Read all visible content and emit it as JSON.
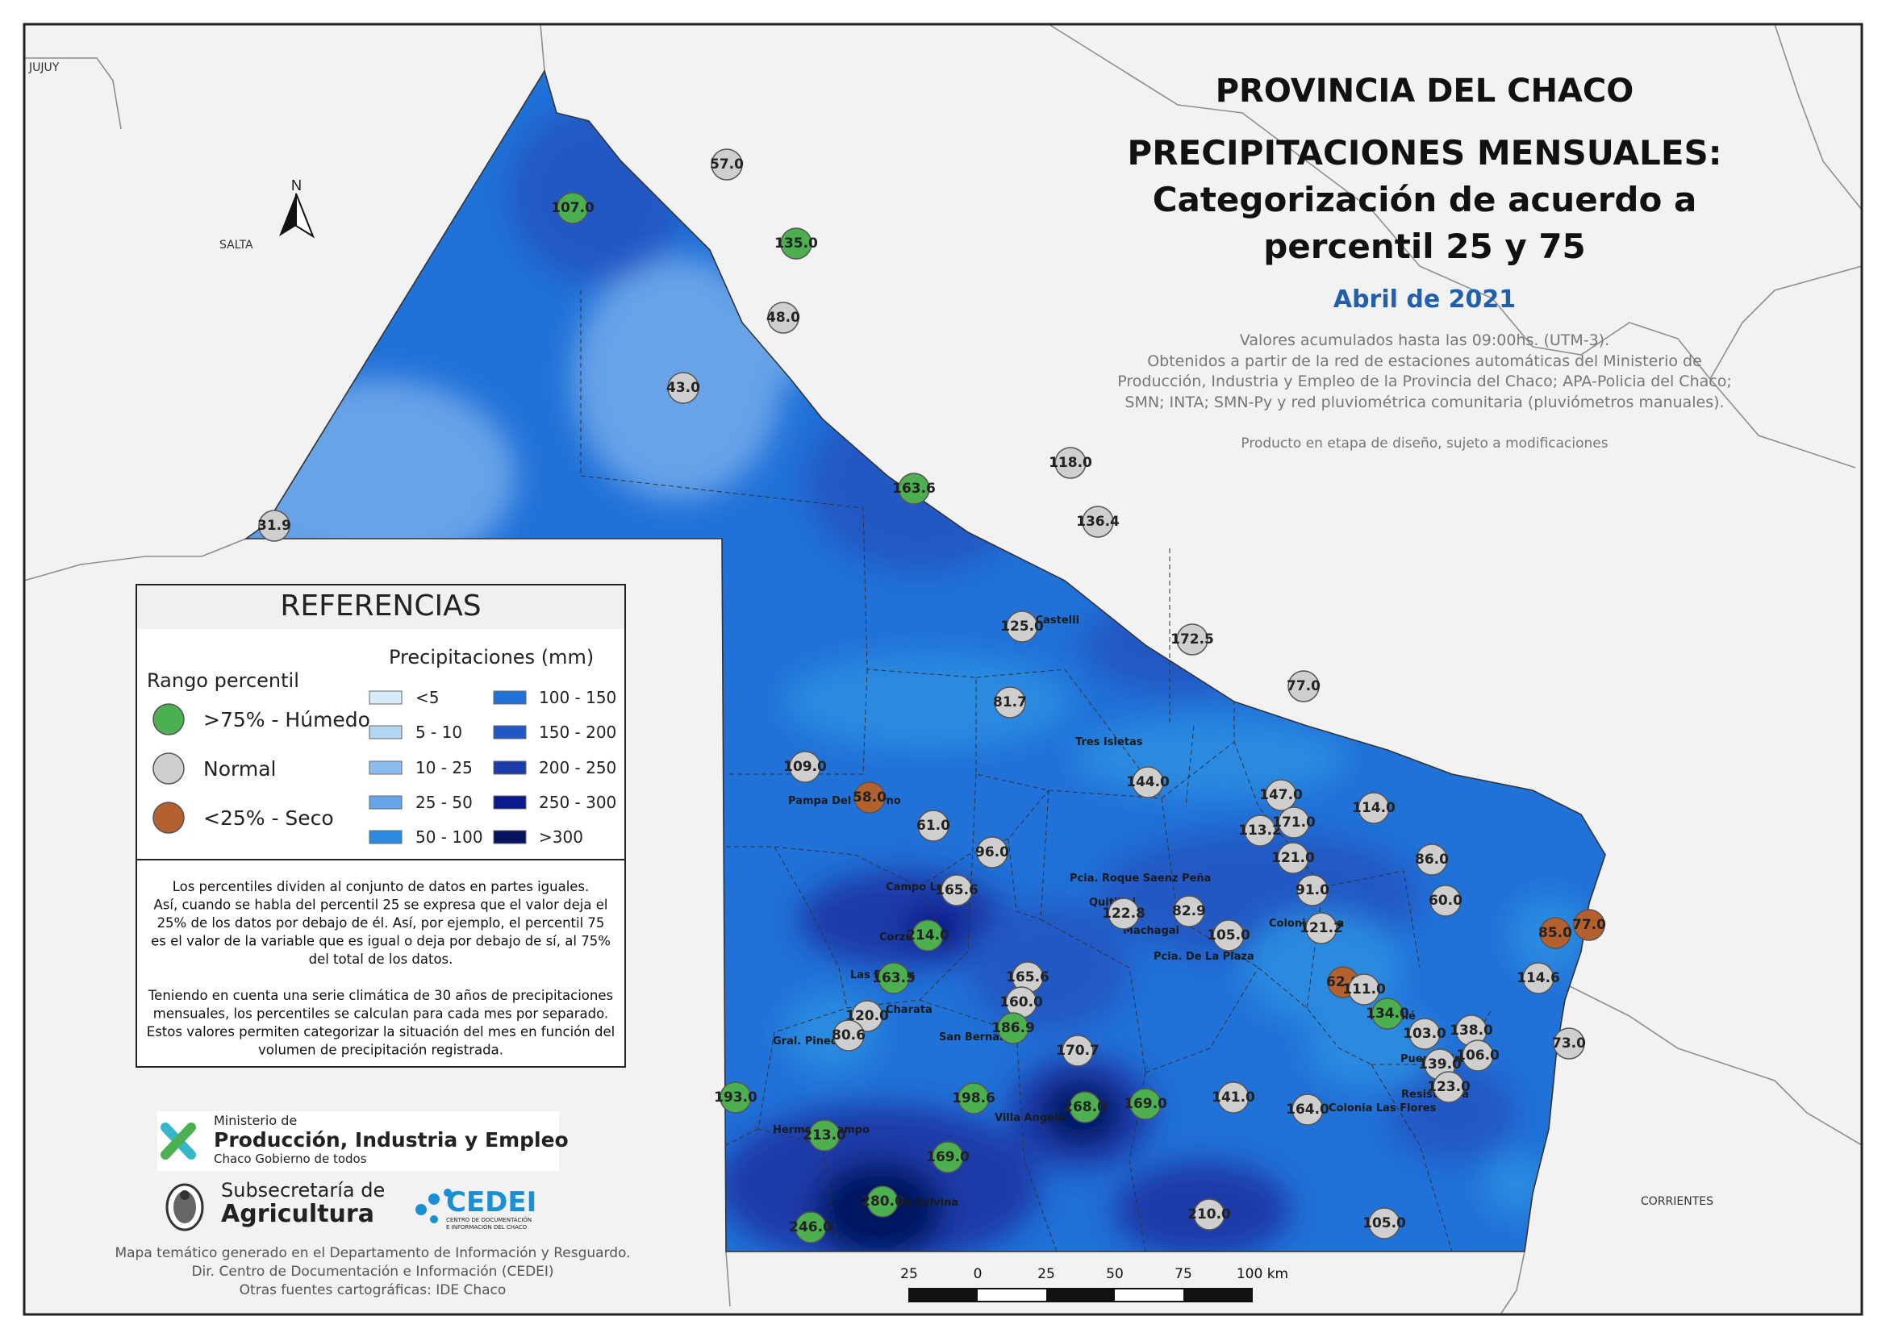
{
  "title": {
    "line1": "PROVINCIA DEL CHACO",
    "line2": "PRECIPITACIONES MENSUALES:",
    "line3": "Categorización de acuerdo a",
    "line4": "percentil 25 y 75",
    "period": "Abril de 2021"
  },
  "notes": {
    "line1": "Valores acumulados hasta las 09:00hs. (UTM-3).",
    "line2": "Obtenidos a partir de la red de estaciones automáticas del Ministerio de",
    "line3": "Producción, Industria y Empleo de la Provincia del Chaco; APA-Policia del Chaco;",
    "line4": "SMN; INTA; SMN-Py y red pluviométrica comunitaria (pluviómetros manuales).",
    "status": "Producto en etapa de diseño, sujeto a modificaciones"
  },
  "regions": {
    "jujuy": "JUJUY",
    "salta": "SALTA",
    "corrientes": "CORRIENTES"
  },
  "north_arrow_label": "N",
  "legend": {
    "heading": "REFERENCIAS",
    "percentile_title": "Rango percentil",
    "precip_title": "Precipitaciones (mm)",
    "categories": [
      {
        "label": ">75% - Húmedo",
        "color": "#4caf50"
      },
      {
        "label": "Normal",
        "color": "#cfcfcf"
      },
      {
        "label": "<25% - Seco",
        "color": "#b5602f"
      }
    ],
    "classes_left": [
      {
        "label": "<5",
        "color": "#d6ecfb"
      },
      {
        "label": "5 - 10",
        "color": "#b3d6f5"
      },
      {
        "label": "10 - 25",
        "color": "#8dbdee"
      },
      {
        "label": "25 - 50",
        "color": "#67a3e8"
      },
      {
        "label": "50 - 100",
        "color": "#2b8ae0"
      }
    ],
    "classes_right": [
      {
        "label": "100 - 150",
        "color": "#2071d8"
      },
      {
        "label": "150 - 200",
        "color": "#2258c4"
      },
      {
        "label": "200 - 250",
        "color": "#1c3aa8"
      },
      {
        "label": "250 - 300",
        "color": "#0b1a8c"
      },
      {
        "label": ">300",
        "color": "#06125e"
      }
    ]
  },
  "explanation": [
    "Los percentiles dividen al conjunto de datos en partes iguales.",
    "Así, cuando se habla del percentil 25 se expresa que el valor deja el",
    "25% de los datos por debajo de él. Así, por ejemplo, el percentil 75",
    "es el valor de la variable que es igual o deja por debajo de sí, al 75%",
    "del total de los datos.",
    "",
    "Teniendo en cuenta una serie climática de 30 años de precipitaciones",
    "mensuales, los percentiles se calculan para cada mes por separado.",
    "Estos valores permiten categorizar la situación del mes en función del",
    "volumen de precipitación registrada."
  ],
  "logos": {
    "ministry_small": "Ministerio de",
    "ministry_name": "Producción, Industria y Empleo",
    "ministry_tag": "Chaco Gobierno de todos",
    "sub_small": "Subsecretaría de",
    "sub_name": "Agricultura",
    "cedei": "CEDEI",
    "cedei_tag1": "CENTRO DE DOCUMENTACIÓN",
    "cedei_tag2": "E INFORMACIÓN DEL CHACO"
  },
  "footer": [
    "Mapa temático generado en el Departamento de Información y Resguardo.",
    "Dir. Centro de Documentación e Información (CEDEI)",
    "Otras fuentes cartográficas: IDE Chaco"
  ],
  "scale_bar": {
    "labels": [
      "25",
      "0",
      "25",
      "50",
      "75",
      "100 km"
    ]
  },
  "places": [
    "J. J. Castelli",
    "Tres Isletas",
    "Pampa Del Infierno",
    "Campo Largo",
    "Corzuela",
    "Las Breñas",
    "Charata",
    "Gral. Pinedo",
    "San Bernardo",
    "Pcia. Roque Saenz Peña",
    "Quitilipi",
    "Machagai",
    "Pcia. De La Plaza",
    "Colonia Elisa",
    "Makallé",
    "Puerto Tirol",
    "Resistencia",
    "Villa Angela",
    "Hermoso Campo",
    "Santa Sylvina",
    "Colonia Las Flores"
  ],
  "stations": [
    {
      "value": "107.0",
      "category": "humedo"
    },
    {
      "value": "57.0",
      "category": "normal"
    },
    {
      "value": "135.0",
      "category": "humedo"
    },
    {
      "value": "48.0",
      "category": "normal"
    },
    {
      "value": "43.0",
      "category": "normal"
    },
    {
      "value": "31.9",
      "category": "normal"
    },
    {
      "value": "163.6",
      "category": "humedo"
    },
    {
      "value": "118.0",
      "category": "normal"
    },
    {
      "value": "136.4",
      "category": "normal"
    },
    {
      "value": "125.0",
      "category": "normal"
    },
    {
      "value": "172.5",
      "category": "normal"
    },
    {
      "value": "77.0",
      "category": "normal"
    },
    {
      "value": "81.7",
      "category": "normal"
    },
    {
      "value": "109.0",
      "category": "normal"
    },
    {
      "value": "58.0",
      "category": "seco"
    },
    {
      "value": "144.0",
      "category": "normal"
    },
    {
      "value": "147.0",
      "category": "normal"
    },
    {
      "value": "114.0",
      "category": "normal"
    },
    {
      "value": "113.2",
      "category": "normal"
    },
    {
      "value": "171.0",
      "category": "normal"
    },
    {
      "value": "61.0",
      "category": "normal"
    },
    {
      "value": "96.0",
      "category": "normal"
    },
    {
      "value": "121.0",
      "category": "normal"
    },
    {
      "value": "86.0",
      "category": "normal"
    },
    {
      "value": "165.6",
      "category": "normal"
    },
    {
      "value": "91.0",
      "category": "normal"
    },
    {
      "value": "60.0",
      "category": "normal"
    },
    {
      "value": "122.8",
      "category": "normal"
    },
    {
      "value": "82.9",
      "category": "normal"
    },
    {
      "value": "121.2",
      "category": "normal"
    },
    {
      "value": "214.0",
      "category": "humedo"
    },
    {
      "value": "105.0",
      "category": "normal"
    },
    {
      "value": "85.0",
      "category": "seco"
    },
    {
      "value": "77.0",
      "category": "seco"
    },
    {
      "value": "163.5",
      "category": "humedo"
    },
    {
      "value": "165.6",
      "category": "normal"
    },
    {
      "value": "62.0",
      "category": "seco"
    },
    {
      "value": "111.0",
      "category": "normal"
    },
    {
      "value": "114.6",
      "category": "normal"
    },
    {
      "value": "160.0",
      "category": "normal"
    },
    {
      "value": "120.0",
      "category": "normal"
    },
    {
      "value": "134.0",
      "category": "humedo"
    },
    {
      "value": "186.9",
      "category": "humedo"
    },
    {
      "value": "80.6",
      "category": "normal"
    },
    {
      "value": "103.0",
      "category": "normal"
    },
    {
      "value": "138.0",
      "category": "normal"
    },
    {
      "value": "170.7",
      "category": "normal"
    },
    {
      "value": "106.0",
      "category": "normal"
    },
    {
      "value": "73.0",
      "category": "normal"
    },
    {
      "value": "139.0",
      "category": "normal"
    },
    {
      "value": "123.0",
      "category": "normal"
    },
    {
      "value": "193.0",
      "category": "humedo"
    },
    {
      "value": "198.6",
      "category": "humedo"
    },
    {
      "value": "268.0",
      "category": "humedo"
    },
    {
      "value": "169.0",
      "category": "humedo"
    },
    {
      "value": "141.0",
      "category": "normal"
    },
    {
      "value": "164.0",
      "category": "normal"
    },
    {
      "value": "213.0",
      "category": "humedo"
    },
    {
      "value": "169.0",
      "category": "humedo"
    },
    {
      "value": "280.0",
      "category": "humedo"
    },
    {
      "value": "210.0",
      "category": "normal"
    },
    {
      "value": "246.0",
      "category": "humedo"
    },
    {
      "value": "105.0",
      "category": "normal"
    }
  ]
}
